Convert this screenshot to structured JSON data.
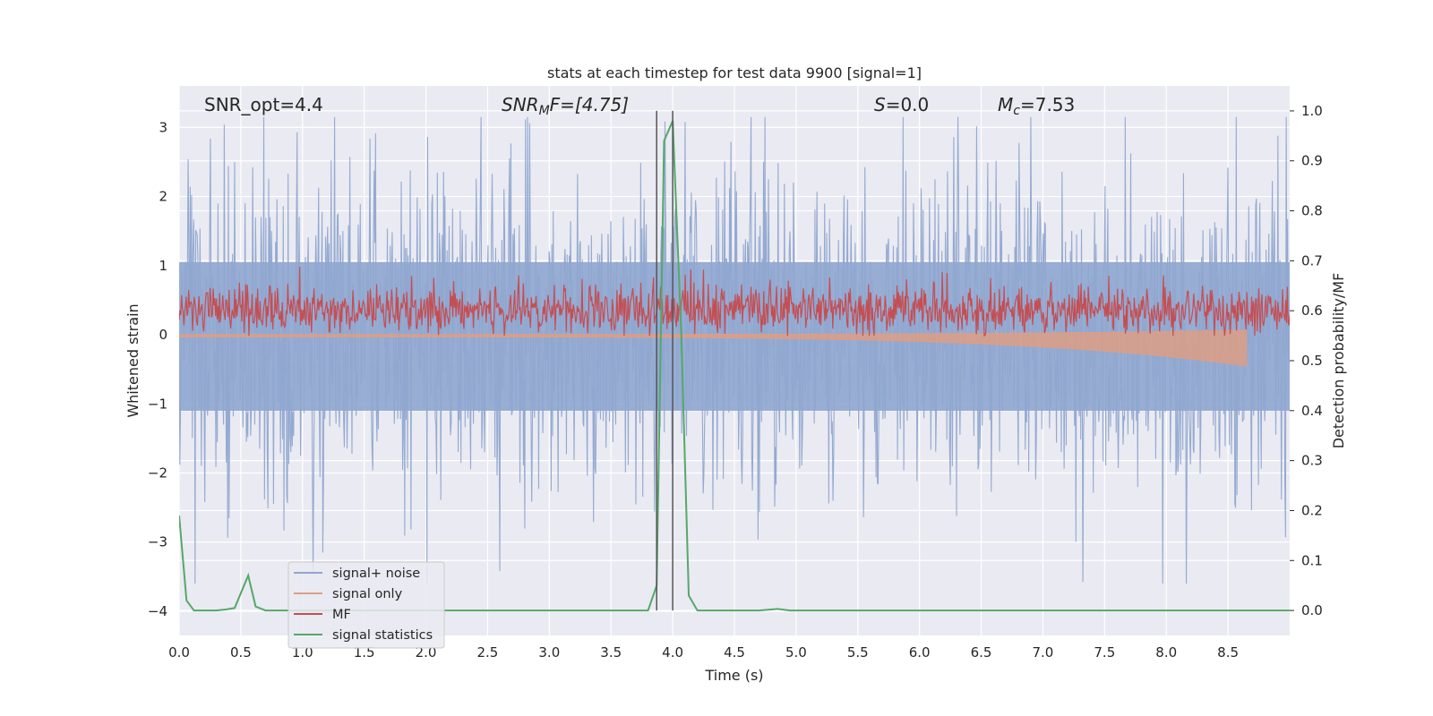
{
  "chart_data": {
    "type": "line",
    "title": "stats at each timestep for test data 9900 [signal=1]",
    "xlabel": "Time (s)",
    "ylabel_left": "Whitened strain",
    "ylabel_right": "Detection probability/MF",
    "xlim": [
      0,
      9.0
    ],
    "ylim_left": [
      -4.35,
      3.6
    ],
    "ylim_right": [
      -0.05,
      1.05
    ],
    "x_ticks": [
      "0.0",
      "0.5",
      "1.0",
      "1.5",
      "2.0",
      "2.5",
      "3.0",
      "3.5",
      "4.0",
      "4.5",
      "5.0",
      "5.5",
      "6.0",
      "6.5",
      "7.0",
      "7.5",
      "8.0",
      "8.5"
    ],
    "y_ticks_left": [
      "3",
      "2",
      "1",
      "0",
      "−1",
      "−2",
      "−3",
      "−4"
    ],
    "y_ticks_right": [
      "1.0",
      "0.9",
      "0.8",
      "0.7",
      "0.6",
      "0.5",
      "0.4",
      "0.3",
      "0.2",
      "0.1",
      "0.0"
    ],
    "grid": true,
    "legend_position": "lower-left",
    "annotations": {
      "snr_opt": "SNR_opt=4.4",
      "snr_mf_main": "SNR",
      "snr_mf_sub": "M",
      "snr_mf_rest": "F=[4.75]",
      "s_italic": "S",
      "s_rest": "=0.0",
      "mc_main": "M",
      "mc_sub": "c",
      "mc_rest": "=7.53"
    },
    "vertical_lines": [
      3.87,
      4.0
    ],
    "colors": {
      "noise": "#8fa6cf",
      "signal_only": "#dd9e85",
      "mf": "#c44e52",
      "stat": "#55a868",
      "vline": "#555555",
      "background": "#eaeaf2",
      "grid": "#ffffff"
    },
    "series": [
      {
        "name": "signal+ noise",
        "description_range": [
          -3.6,
          3.15
        ],
        "envelope_typical": [
          -1.7,
          1.8
        ]
      },
      {
        "name": "signal only",
        "chirp_end": 8.65,
        "amplitude_at_end": 0.45
      },
      {
        "name": "MF",
        "baseline": 0.6,
        "typical_range": [
          0.55,
          0.69
        ],
        "max": 0.7
      },
      {
        "name": "signal statistics",
        "x": [
          0.0,
          0.06,
          0.12,
          0.2,
          0.3,
          0.38,
          0.45,
          0.56,
          0.62,
          0.7,
          1.0,
          2.0,
          3.0,
          3.5,
          3.8,
          3.87,
          3.93,
          4.0,
          4.07,
          4.13,
          4.2,
          4.5,
          4.7,
          4.85,
          4.95,
          5.1,
          6.0,
          7.0,
          8.0,
          9.0
        ],
        "values": [
          0.19,
          0.02,
          0.0,
          0.0,
          0.0,
          0.002,
          0.005,
          0.07,
          0.008,
          0.0,
          0.0,
          0.0,
          0.0,
          0.0,
          0.0,
          0.05,
          0.94,
          0.98,
          0.55,
          0.03,
          0.0,
          0.0,
          0.0,
          0.003,
          0.0,
          0.0,
          0.0,
          0.0,
          0.0,
          0.0
        ]
      }
    ]
  }
}
